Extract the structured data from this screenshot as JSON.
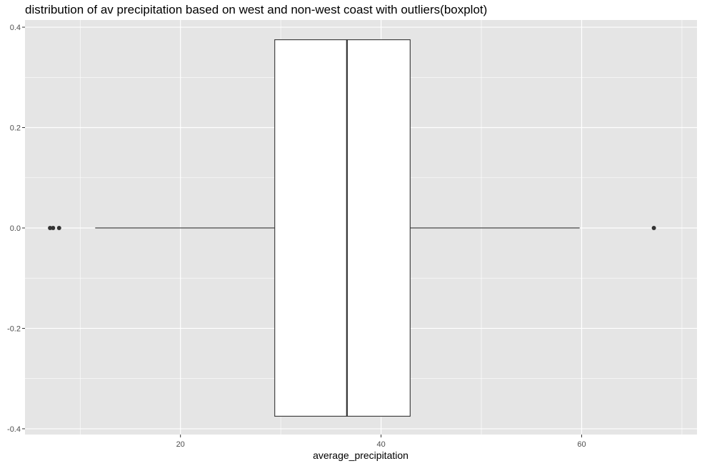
{
  "chart_data": {
    "type": "boxplot",
    "title": "distribution of av precipitation based on west and non-west coast with outliers(boxplot)",
    "xlabel": "average_precipitation",
    "ylabel": "",
    "xlim": [
      4.5,
      71.5
    ],
    "ylim": [
      -0.4115,
      0.4143
    ],
    "x_ticks": [
      20,
      40,
      60
    ],
    "x_tick_labels": [
      "20",
      "40",
      "60"
    ],
    "y_ticks": [
      0.4,
      0.2,
      0.0,
      -0.2,
      -0.4
    ],
    "y_tick_labels": [
      "0.4",
      "0.2",
      "0.0",
      "-0.2",
      "-0.4"
    ],
    "grid": true,
    "box": {
      "whisker_low": 11.5,
      "q1": 29.4,
      "median": 36.6,
      "q3": 42.9,
      "whisker_high": 59.8,
      "y_center": 0.0,
      "y_half_width": 0.375
    },
    "outliers": [
      7.0,
      7.3,
      7.9,
      67.2
    ],
    "colors": {
      "panel_background": "#e5e5e5",
      "grid": "#ffffff",
      "box_fill": "#ffffff",
      "box_stroke": "#333333",
      "outlier": "#333333"
    }
  }
}
